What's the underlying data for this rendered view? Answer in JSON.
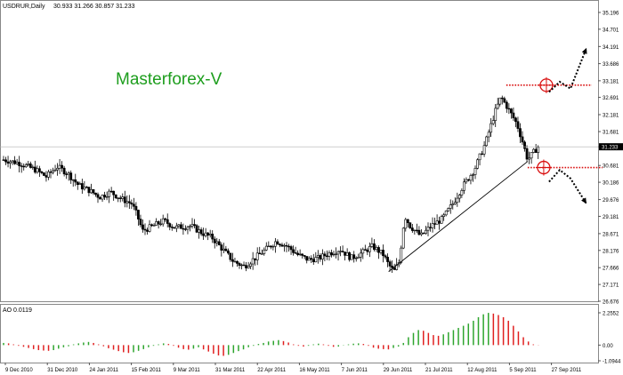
{
  "header": {
    "symbol_info": "USDRUR,Daily",
    "ohlc": "30.933 31.266 30.857 31.233"
  },
  "watermark": {
    "text": "Masterforex-V",
    "color": "#1e9e1e"
  },
  "colors": {
    "ao_up": "#2ea52e",
    "ao_down": "#e02020",
    "level_line": "#d91010",
    "trendline": "#000000"
  },
  "chart_data": [
    {
      "type": "candlestick",
      "title": "USDRUR,Daily",
      "yticks": [
        "35.196",
        "34.701",
        "34.191",
        "33.686",
        "33.181",
        "32.691",
        "32.181",
        "31.681",
        "31.233",
        "30.681",
        "30.186",
        "29.676",
        "29.181",
        "28.671",
        "28.176",
        "27.666",
        "27.171",
        "26.676"
      ],
      "ylim": [
        26.676,
        35.196
      ],
      "current_price": "31.233",
      "xticks": [
        "9 Dec 2010",
        "31 Dec 2010",
        "24 Jan 2011",
        "15 Feb 2011",
        "9 Mar 2011",
        "31 Mar 2011",
        "22 Apr 2011",
        "16 May 2011",
        "7 Jun 2011",
        "29 Jun 2011",
        "21 Jul 2011",
        "12 Aug 2011",
        "5 Sep 2011",
        "27 Sep 2011"
      ],
      "price_path": [
        [
          0,
          30.85
        ],
        [
          3,
          30.75
        ],
        [
          6,
          30.55
        ],
        [
          8,
          30.35
        ],
        [
          10,
          30.65
        ],
        [
          12,
          30.45
        ],
        [
          14,
          30.1
        ],
        [
          16,
          29.95
        ],
        [
          18,
          29.75
        ],
        [
          20,
          29.9
        ],
        [
          22,
          29.7
        ],
        [
          24,
          29.55
        ],
        [
          25,
          29.2
        ],
        [
          26,
          28.75
        ],
        [
          28,
          28.9
        ],
        [
          30,
          29.05
        ],
        [
          32,
          28.85
        ],
        [
          35,
          28.9
        ],
        [
          37,
          28.7
        ],
        [
          39,
          28.55
        ],
        [
          41,
          28.2
        ],
        [
          43,
          27.85
        ],
        [
          45,
          27.7
        ],
        [
          47,
          27.95
        ],
        [
          49,
          28.2
        ],
        [
          51,
          28.45
        ],
        [
          53,
          28.3
        ],
        [
          55,
          28.05
        ],
        [
          57,
          27.9
        ],
        [
          59,
          27.95
        ],
        [
          61,
          28.1
        ],
        [
          63,
          28.2
        ],
        [
          65,
          27.95
        ],
        [
          67,
          28.1
        ],
        [
          69,
          28.3
        ],
        [
          71,
          28.05
        ],
        [
          72,
          27.75
        ],
        [
          73,
          27.55
        ],
        [
          74,
          27.85
        ],
        [
          75,
          29.2
        ],
        [
          76,
          28.9
        ],
        [
          78,
          28.6
        ],
        [
          80,
          28.9
        ],
        [
          82,
          29.1
        ],
        [
          84,
          29.55
        ],
        [
          86,
          30.1
        ],
        [
          88,
          30.55
        ],
        [
          90,
          31.3
        ],
        [
          92,
          32.3
        ],
        [
          93,
          32.7
        ],
        [
          94,
          32.45
        ],
        [
          96,
          31.9
        ],
        [
          97,
          31.4
        ],
        [
          98,
          30.85
        ],
        [
          99,
          31.05
        ],
        [
          100,
          31.233
        ]
      ],
      "resistance_level": 33.05,
      "support_level": 30.62,
      "trendline": [
        [
          72,
          27.55
        ],
        [
          98,
          30.8
        ]
      ],
      "arrows": [
        {
          "direction": "up",
          "points": [
            [
              102,
              32.85
            ],
            [
              104,
              33.15
            ],
            [
              106,
              32.95
            ],
            [
              109,
              34.15
            ]
          ]
        },
        {
          "direction": "down",
          "points": [
            [
              102,
              30.2
            ],
            [
              104,
              30.55
            ],
            [
              106,
              30.3
            ],
            [
              109,
              29.55
            ]
          ]
        }
      ]
    },
    {
      "type": "bar",
      "title": "AO 0.0119",
      "yticks": [
        "2.2552",
        "0.00",
        "-1.0944"
      ],
      "ylim": [
        -1.0944,
        2.2552
      ],
      "values": [
        0.15,
        0.12,
        0.05,
        -0.05,
        -0.12,
        -0.2,
        -0.28,
        -0.35,
        -0.38,
        -0.4,
        -0.35,
        -0.25,
        -0.15,
        -0.08,
        0.05,
        0.12,
        0.18,
        0.22,
        0.15,
        0.05,
        -0.08,
        -0.22,
        -0.32,
        -0.42,
        -0.5,
        -0.55,
        -0.5,
        -0.4,
        -0.28,
        -0.15,
        -0.05,
        0.05,
        0.12,
        0.08,
        -0.05,
        -0.18,
        -0.28,
        -0.32,
        -0.25,
        -0.15,
        -0.3,
        -0.45,
        -0.6,
        -0.72,
        -0.75,
        -0.68,
        -0.55,
        -0.42,
        -0.3,
        -0.15,
        -0.05,
        0.08,
        0.15,
        0.25,
        0.3,
        0.35,
        0.28,
        0.18,
        0.05,
        -0.05,
        -0.1,
        -0.05,
        0.05,
        0.1,
        0.05,
        -0.05,
        -0.12,
        -0.1,
        -0.02,
        0.05,
        0.1,
        0.12,
        0.08,
        -0.05,
        -0.18,
        -0.25,
        -0.28,
        -0.3,
        -0.2,
        -0.1,
        0.15,
        0.55,
        0.85,
        1.05,
        1.0,
        0.85,
        0.7,
        0.65,
        0.75,
        0.9,
        1.05,
        1.2,
        1.35,
        1.5,
        1.7,
        1.95,
        2.15,
        2.25,
        2.2,
        2.1,
        1.95,
        1.7,
        1.35,
        0.95,
        0.55,
        0.25,
        0.05,
        0.0119
      ]
    }
  ]
}
